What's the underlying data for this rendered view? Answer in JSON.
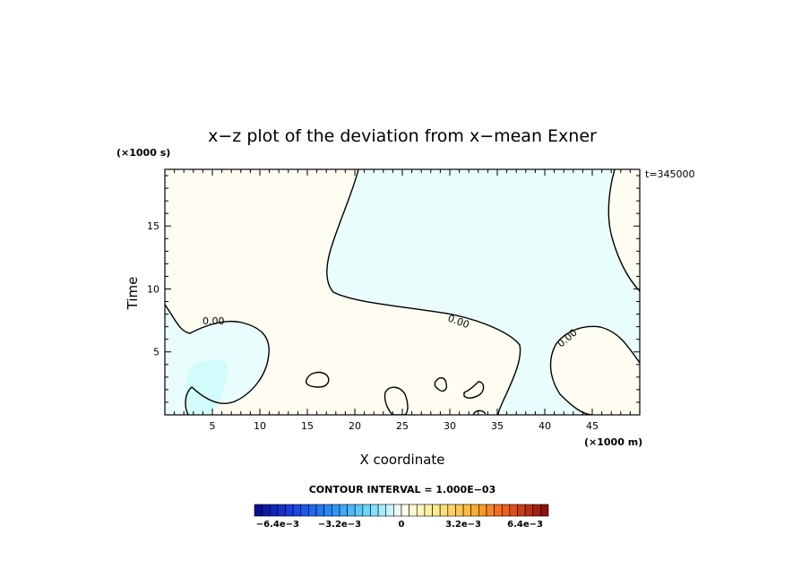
{
  "chart_data": {
    "type": "heatmap",
    "title": "x−z plot of the deviation from x−mean Exner",
    "xlabel": "X coordinate",
    "ylabel": "Time",
    "x_unit": "(×1000 m)",
    "y_unit": "(×1000 s)",
    "time_label": "t=345000",
    "xlim": [
      0,
      50
    ],
    "ylim": [
      0,
      19.5
    ],
    "x_ticks": [
      5,
      10,
      15,
      20,
      25,
      30,
      35,
      40,
      45
    ],
    "y_ticks": [
      5,
      10,
      15
    ],
    "contour_labels": [
      "0.00",
      "0.00",
      "0.00"
    ],
    "contour_interval_label": "CONTOUR INTERVAL = 1.000E−03",
    "colorbar": {
      "min": -0.0076,
      "max": 0.0076,
      "step": 0.0004,
      "tick_labels": [
        "−6.4e−3",
        "−3.2e−3",
        "0",
        "3.2e−3",
        "6.4e−3"
      ],
      "tick_values": [
        -0.0064,
        -0.0032,
        0,
        0.0032,
        0.0064
      ]
    },
    "regions": [
      {
        "name": "positive",
        "color": "#fffdf2"
      },
      {
        "name": "negative",
        "color": "#e9fdfd"
      },
      {
        "name": "negative-strong",
        "color": "#d2fbfb"
      }
    ]
  }
}
